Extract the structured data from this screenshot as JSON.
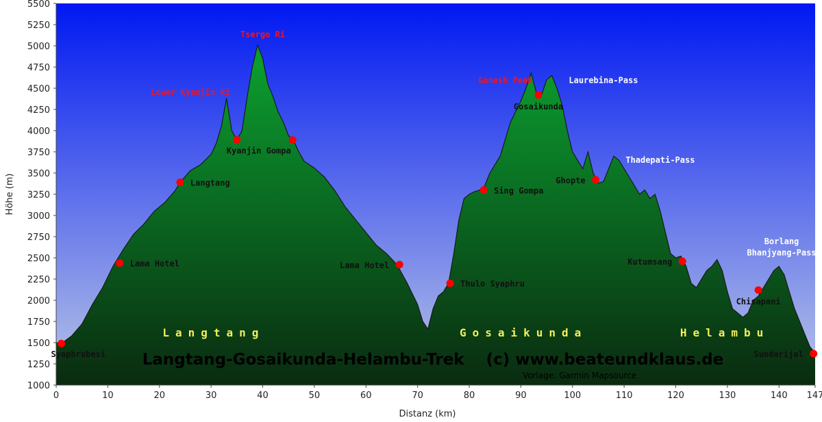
{
  "chart_data": {
    "type": "area",
    "xlabel": "Distanz  (km)",
    "ylabel": "Höhe (m)",
    "xlim": [
      0,
      147
    ],
    "ylim": [
      1000,
      5500
    ],
    "x_ticks": [
      0,
      10,
      20,
      30,
      40,
      50,
      60,
      70,
      80,
      90,
      100,
      110,
      120,
      130,
      140,
      147
    ],
    "y_ticks": [
      1000,
      1250,
      1500,
      1750,
      2000,
      2250,
      2500,
      2750,
      3000,
      3250,
      3500,
      3750,
      4000,
      4250,
      4500,
      4750,
      5000,
      5250,
      5500
    ],
    "grid": false,
    "colors": {
      "sky_top": "#0018f2",
      "sky_bottom": "#bac6e6",
      "fill_top": "#0b9c2f",
      "fill_bottom": "#0a2b10",
      "outline": "#1a1a1a",
      "marker": "#ff0000",
      "label_red": "#e8172b",
      "label_white": "#ffffff",
      "region_yellow": "#f3f05a"
    },
    "profile": {
      "x": [
        0,
        1,
        3,
        5,
        7,
        9,
        11,
        13,
        15,
        17,
        19,
        21,
        23,
        24,
        26,
        28,
        30,
        31,
        32,
        33,
        34,
        35,
        36,
        37,
        38,
        39,
        40,
        41,
        42,
        43,
        44,
        45,
        46,
        47,
        48,
        50,
        52,
        54,
        56,
        58,
        60,
        62,
        64,
        66,
        68,
        70,
        71,
        72,
        73,
        74,
        75,
        76,
        77,
        78,
        79,
        80,
        81,
        82,
        83,
        84,
        86,
        88,
        90,
        91,
        92,
        93,
        94,
        95,
        96,
        97,
        98,
        99,
        100,
        101,
        102,
        103,
        104,
        105,
        106,
        107,
        108,
        109,
        110,
        111,
        112,
        113,
        114,
        115,
        116,
        117,
        118,
        119,
        120,
        121,
        122,
        123,
        124,
        125,
        126,
        127,
        128,
        129,
        130,
        131,
        132,
        133,
        134,
        135,
        136,
        137,
        138,
        139,
        140,
        141,
        142,
        143,
        144,
        145,
        146,
        147
      ],
      "y": [
        1500,
        1490,
        1580,
        1720,
        1950,
        2150,
        2400,
        2600,
        2780,
        2900,
        3050,
        3150,
        3290,
        3390,
        3530,
        3600,
        3720,
        3850,
        4050,
        4380,
        4000,
        3890,
        4000,
        4400,
        4750,
        5010,
        4850,
        4550,
        4400,
        4220,
        4100,
        3940,
        3880,
        3750,
        3640,
        3560,
        3450,
        3290,
        3100,
        2950,
        2800,
        2650,
        2550,
        2420,
        2200,
        1950,
        1750,
        1660,
        1900,
        2050,
        2100,
        2200,
        2550,
        2950,
        3200,
        3250,
        3280,
        3300,
        3350,
        3500,
        3700,
        4100,
        4350,
        4500,
        4680,
        4450,
        4420,
        4600,
        4650,
        4500,
        4300,
        4000,
        3750,
        3650,
        3550,
        3750,
        3500,
        3380,
        3400,
        3550,
        3700,
        3650,
        3550,
        3450,
        3350,
        3250,
        3300,
        3200,
        3250,
        3050,
        2800,
        2550,
        2500,
        2520,
        2400,
        2200,
        2150,
        2250,
        2350,
        2400,
        2480,
        2350,
        2100,
        1900,
        1850,
        1800,
        1850,
        2000,
        2050,
        2150,
        2250,
        2350,
        2400,
        2300,
        2100,
        1900,
        1750,
        1600,
        1450,
        1380
      ]
    },
    "waypoints": [
      {
        "name": "Syaphrubesi",
        "x": 1,
        "y": 1490,
        "style": "black",
        "pos": "below-right"
      },
      {
        "name": "Lama Hotel",
        "x": 12.3,
        "y": 2440,
        "style": "black",
        "pos": "right"
      },
      {
        "name": "Langtang",
        "x": 24,
        "y": 3390,
        "style": "black",
        "pos": "right"
      },
      {
        "name": "Kyanjin Gompa",
        "x": 35,
        "y": 3890,
        "style": "black",
        "pos": "below-right"
      },
      {
        "name": "",
        "x": 45.8,
        "y": 3890,
        "style": "black",
        "pos": "none"
      },
      {
        "name": "Lama Hotel",
        "x": 66.5,
        "y": 2420,
        "style": "black",
        "pos": "left"
      },
      {
        "name": "Thulo Syaphru",
        "x": 76.3,
        "y": 2200,
        "style": "black",
        "pos": "right"
      },
      {
        "name": "Sing Gompa",
        "x": 82.8,
        "y": 3300,
        "style": "black",
        "pos": "right"
      },
      {
        "name": "Gosaikunda",
        "x": 93.4,
        "y": 4420,
        "style": "black",
        "pos": "below"
      },
      {
        "name": "Ghopte",
        "x": 104.5,
        "y": 3420,
        "style": "black",
        "pos": "left"
      },
      {
        "name": "Kutumsang",
        "x": 121.3,
        "y": 2460,
        "style": "black",
        "pos": "left"
      },
      {
        "name": "Chisapani",
        "x": 136,
        "y": 2120,
        "style": "black",
        "pos": "below"
      },
      {
        "name": "Sundarijal",
        "x": 146.7,
        "y": 1370,
        "style": "black",
        "pos": "left"
      }
    ],
    "peaks": [
      {
        "name": "Tsergo Ri",
        "x": 40,
        "y": 5100,
        "style": "red"
      },
      {
        "name": "Lower Kyanjin Ri",
        "x": 26,
        "y": 4420,
        "style": "red"
      },
      {
        "name": "Ganesh Peak",
        "x": 87,
        "y": 4560,
        "style": "red"
      },
      {
        "name": "Laurebina-Pass",
        "x": 106,
        "y": 4560,
        "style": "white"
      },
      {
        "name": "Thadepati-Pass",
        "x": 117,
        "y": 3620,
        "style": "white"
      },
      {
        "name": "Borlang",
        "x": 140.5,
        "y": 2660,
        "style": "white"
      },
      {
        "name": "Bhanjyang-Pass",
        "x": 140.5,
        "y": 2530,
        "style": "white"
      }
    ],
    "regions": [
      {
        "name": "Langtang",
        "x": 30.5,
        "y": 1620
      },
      {
        "name": "Gosaikunda",
        "x": 90.5,
        "y": 1620
      },
      {
        "name": "Helambu",
        "x": 129.5,
        "y": 1620
      }
    ],
    "title": "Langtang-Gosaikunda-Helambu-Trek    (c) www.beateundklaus.de",
    "subtitle": "Vorlage: Garmin Mapsource"
  }
}
